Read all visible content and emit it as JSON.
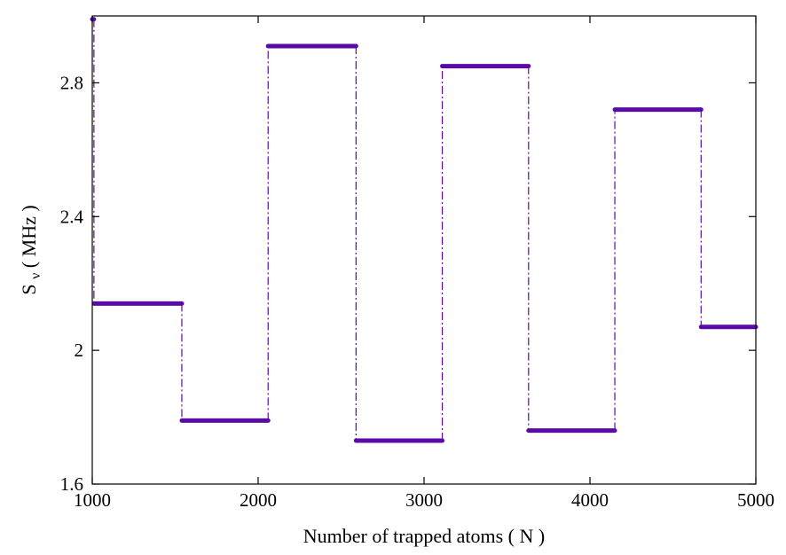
{
  "colors": {
    "series": "#5a0aa8",
    "axes": "#000000",
    "background": "#ffffff"
  },
  "chart_data": {
    "type": "line",
    "style": "step",
    "xlabel": "Number of trapped atoms ( N )",
    "ylabel_main": "S",
    "ylabel_sub": "ν",
    "ylabel_rest": " ( MHz )",
    "xlim": [
      1000,
      5000
    ],
    "ylim": [
      1.6,
      3.0
    ],
    "grid": false,
    "xticks": [
      1000,
      2000,
      3000,
      4000,
      5000
    ],
    "xtick_labels": [
      "1000",
      "2000",
      "3000",
      "4000",
      "5000"
    ],
    "yticks": [
      1.6,
      2.0,
      2.4,
      2.8
    ],
    "ytick_labels": [
      "1.6",
      "2",
      "2.4",
      "2.8"
    ],
    "segments": [
      {
        "x_start": 1000,
        "x_end": 1010,
        "y": 2.99
      },
      {
        "x_start": 1010,
        "x_end": 1540,
        "y": 2.14
      },
      {
        "x_start": 1540,
        "x_end": 2060,
        "y": 1.79
      },
      {
        "x_start": 2060,
        "x_end": 2590,
        "y": 2.91
      },
      {
        "x_start": 2590,
        "x_end": 3110,
        "y": 1.73
      },
      {
        "x_start": 3110,
        "x_end": 3630,
        "y": 2.85
      },
      {
        "x_start": 3630,
        "x_end": 4150,
        "y": 1.76
      },
      {
        "x_start": 4150,
        "x_end": 4670,
        "y": 2.72
      },
      {
        "x_start": 4670,
        "x_end": 5000,
        "y": 2.07
      }
    ]
  }
}
